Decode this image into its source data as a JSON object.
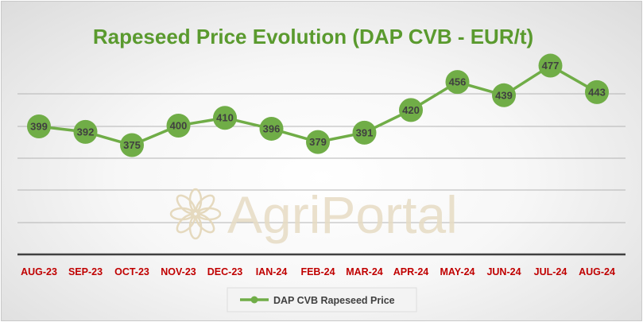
{
  "chart_data": {
    "type": "line",
    "title": "Rapeseed Price Evolution (DAP CVB - EUR/t)",
    "categories": [
      "AUG-23",
      "SEP-23",
      "OCT-23",
      "NOV-23",
      "DEC-23",
      "IAN-24",
      "FEB-24",
      "MAR-24",
      "APR-24",
      "MAY-24",
      "JUN-24",
      "JUL-24",
      "AUG-24"
    ],
    "series": [
      {
        "name": "DAP CVB Rapeseed Price",
        "values": [
          399,
          392,
          375,
          400,
          410,
          396,
          379,
          391,
          420,
          456,
          439,
          477,
          443
        ],
        "color": "#70ad47"
      }
    ],
    "data_labels": true,
    "grid": true,
    "legend_position": "bottom",
    "title_color": "#5a9a2e",
    "tick_label_color": "#c00000",
    "watermark": "AgriPortal"
  }
}
